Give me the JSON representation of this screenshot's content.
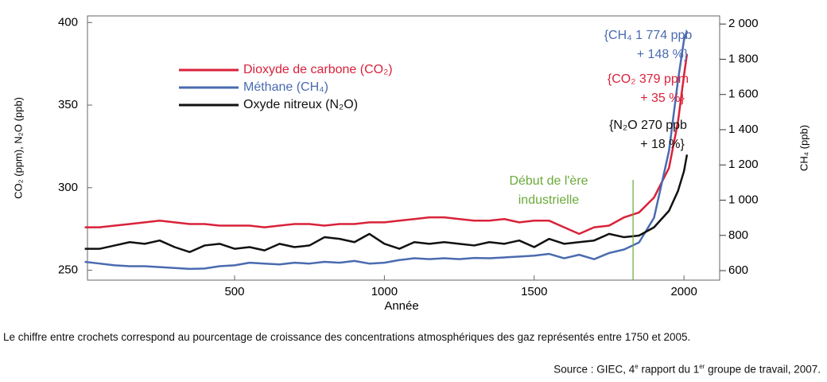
{
  "chart_data": {
    "type": "line",
    "x_label": "Année",
    "y_label": "CO₂ (ppm), N₂O (ppb)",
    "y2_label": "CH₄ (ppb)",
    "x": [
      0,
      50,
      100,
      150,
      200,
      250,
      300,
      350,
      400,
      450,
      500,
      550,
      600,
      650,
      700,
      750,
      800,
      850,
      900,
      950,
      1000,
      1050,
      1100,
      1150,
      1200,
      1250,
      1300,
      1350,
      1400,
      1450,
      1500,
      1550,
      1600,
      1650,
      1700,
      1750,
      1800,
      1850,
      1900,
      1950,
      1980,
      2000,
      2010
    ],
    "xlim": [
      9,
      2119
    ],
    "xticks": [
      500,
      1000,
      1500,
      2000
    ],
    "ylim": [
      244,
      404
    ],
    "yticks": [
      250,
      300,
      350,
      400
    ],
    "y2lim": [
      546,
      2046
    ],
    "y2ticks": [
      {
        "value": 600,
        "label": "600"
      },
      {
        "value": 800,
        "label": "800"
      },
      {
        "value": 1000,
        "label": "1 000"
      },
      {
        "value": 1200,
        "label": "1 200"
      },
      {
        "value": 1400,
        "label": "1 400"
      },
      {
        "value": 1600,
        "label": "1 600"
      },
      {
        "value": 1800,
        "label": "1 800"
      },
      {
        "value": 2000,
        "label": "2 000"
      }
    ],
    "series": [
      {
        "name": "Dioxyde de carbone (CO₂)",
        "color": "#d9223a",
        "values": [
          276,
          276,
          277,
          278,
          279,
          280,
          279,
          278,
          278,
          277,
          277,
          277,
          276,
          277,
          278,
          278,
          277,
          278,
          278,
          279,
          279,
          280,
          281,
          282,
          282,
          281,
          280,
          280,
          281,
          279,
          280,
          280,
          276,
          272,
          276,
          277,
          282,
          285,
          294,
          312,
          340,
          368,
          381
        ]
      },
      {
        "name": "Méthane (CH₄)",
        "color": "#4a6bb0",
        "axis": "y2",
        "values": [
          650,
          640,
          630,
          625,
          625,
          620,
          615,
          610,
          612,
          625,
          630,
          645,
          640,
          635,
          645,
          640,
          650,
          645,
          655,
          640,
          645,
          660,
          670,
          665,
          670,
          665,
          672,
          670,
          675,
          680,
          685,
          695,
          670,
          690,
          665,
          700,
          720,
          760,
          900,
          1280,
          1680,
          1910,
          1960
        ]
      },
      {
        "name": "Oxyde nitreux (N₂O)",
        "color": "#111111",
        "values": [
          263,
          263,
          265,
          267,
          266,
          268,
          264,
          261,
          265,
          266,
          263,
          264,
          262,
          266,
          264,
          265,
          270,
          269,
          267,
          272,
          266,
          263,
          267,
          266,
          267,
          266,
          265,
          267,
          266,
          268,
          264,
          269,
          266,
          267,
          268,
          272,
          270,
          271,
          276,
          286,
          298,
          310,
          320
        ]
      }
    ],
    "annotations": [
      {
        "lines": [
          "{CH₄  1 774 ppb",
          "+ 148 %}"
        ],
        "color": "#4a6bb0"
      },
      {
        "lines": [
          "{CO₂  379 ppm",
          "+ 35 %}"
        ],
        "color": "#d9223a"
      },
      {
        "lines": [
          "{N₂O  270 ppb",
          "+ 18 %}"
        ],
        "color": "#111111"
      }
    ],
    "industrial": {
      "lines": [
        "Début de l'ère",
        "industrielle"
      ],
      "x": 1830,
      "color": "#6aaa3a"
    },
    "note": "Le chiffre entre crochets correspond au pourcentage de croissance des concentrations atmosphériques des gaz représentés entre 1750 et 2005.",
    "source": [
      "Source : GIEC, 4",
      "e",
      " rapport du 1",
      "er",
      " groupe de travail, 2007."
    ]
  }
}
